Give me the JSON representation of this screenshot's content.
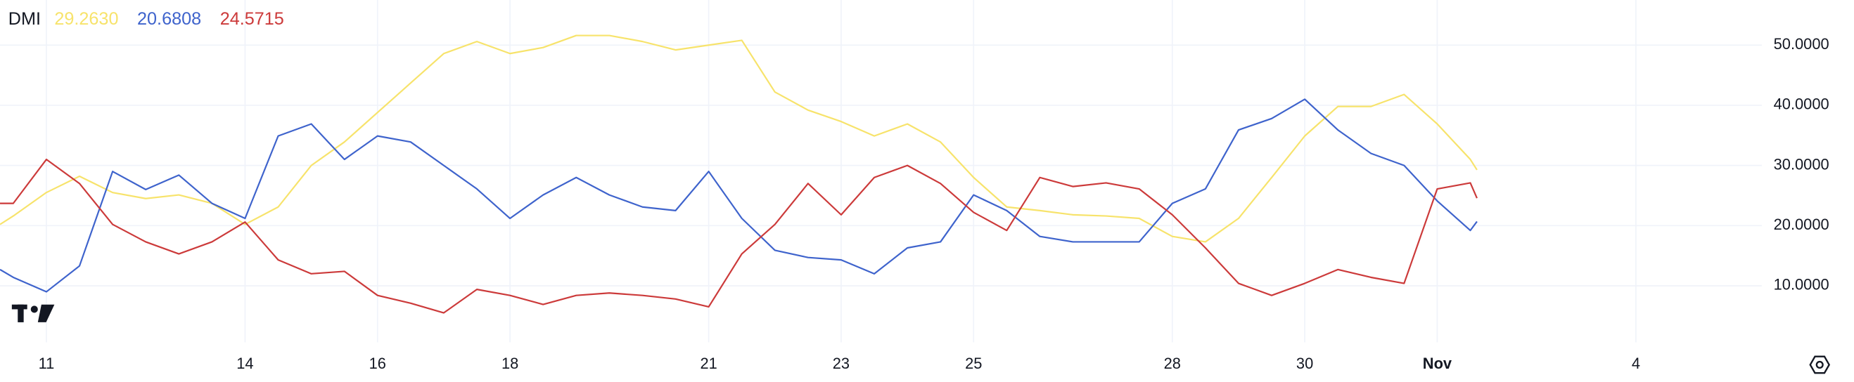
{
  "chart_data": {
    "type": "line",
    "title": "DMI",
    "header_values": [
      "29.2630",
      "20.6808",
      "24.5715"
    ],
    "x": [
      10.3,
      10.5,
      11,
      11.5,
      12,
      12.5,
      13,
      13.5,
      14,
      14.5,
      15,
      15.5,
      16,
      16.5,
      17,
      17.5,
      18,
      18.5,
      19,
      19.5,
      20,
      20.5,
      21,
      21.5,
      22,
      22.5,
      23,
      23.5,
      24,
      24.5,
      25,
      25.5,
      26,
      26.5,
      27,
      27.5,
      28,
      28.5,
      29,
      29.5,
      30,
      30.5,
      31,
      31.5,
      32,
      32.5,
      32.6
    ],
    "series": [
      {
        "color": "#f7e36b",
        "values": [
          20.2,
          21.6,
          25.5,
          28.2,
          25.5,
          24.5,
          25.1,
          23.7,
          20.2,
          23.1,
          30,
          33.9,
          38.8,
          43.7,
          48.6,
          50.6,
          48.6,
          49.6,
          51.6,
          51.6,
          50.6,
          49.2,
          50,
          50.8,
          42.2,
          39.2,
          37.3,
          34.9,
          36.9,
          33.9,
          28,
          23.1,
          22.5,
          21.8,
          21.6,
          21.2,
          18.2,
          17.3,
          21.2,
          28,
          34.9,
          39.8,
          39.8,
          41.8,
          36.9,
          31,
          29.263
        ]
      },
      {
        "color": "#3e63cc",
        "values": [
          12.7,
          11.4,
          9,
          13.3,
          29,
          26,
          28.4,
          23.7,
          21.2,
          34.9,
          36.9,
          31,
          34.9,
          33.9,
          30,
          26.1,
          21.2,
          25.1,
          28,
          25.1,
          23.1,
          22.5,
          29,
          21.2,
          15.9,
          14.7,
          14.3,
          12,
          16.3,
          17.3,
          25.1,
          22.5,
          18.2,
          17.3,
          17.3,
          17.3,
          23.7,
          26.1,
          35.9,
          37.8,
          41,
          35.9,
          32,
          30,
          24.1,
          19.2,
          20.6808
        ]
      },
      {
        "color": "#cc3a3a",
        "values": [
          23.7,
          23.7,
          31,
          27,
          20.2,
          17.3,
          15.3,
          17.3,
          20.6,
          14.3,
          12,
          12.4,
          8.4,
          7.1,
          5.5,
          9.4,
          8.4,
          6.9,
          8.4,
          8.8,
          8.4,
          7.8,
          6.5,
          15.3,
          20.2,
          27,
          21.8,
          28,
          30,
          27,
          22.2,
          19.2,
          28,
          26.5,
          27.1,
          26.1,
          21.8,
          16.3,
          10.4,
          8.4,
          10.4,
          12.7,
          11.4,
          10.4,
          26.1,
          27.1,
          24.5715
        ]
      }
    ],
    "xlim": [
      10.3,
      36.9
    ],
    "xticks": [
      11,
      14,
      16,
      18,
      21,
      23,
      25,
      28,
      30,
      {
        "value": 32,
        "label": "Nov"
      },
      {
        "value": 35,
        "label": "4"
      }
    ],
    "ylim": [
      0.6,
      57.5
    ],
    "yticks": [
      {
        "value": 10,
        "label": "10.0000"
      },
      {
        "value": 20,
        "label": "20.0000"
      },
      {
        "value": 30,
        "label": "30.0000"
      },
      {
        "value": 40,
        "label": "40.0000"
      },
      {
        "value": 50,
        "label": "50.0000"
      }
    ],
    "grid": true
  }
}
